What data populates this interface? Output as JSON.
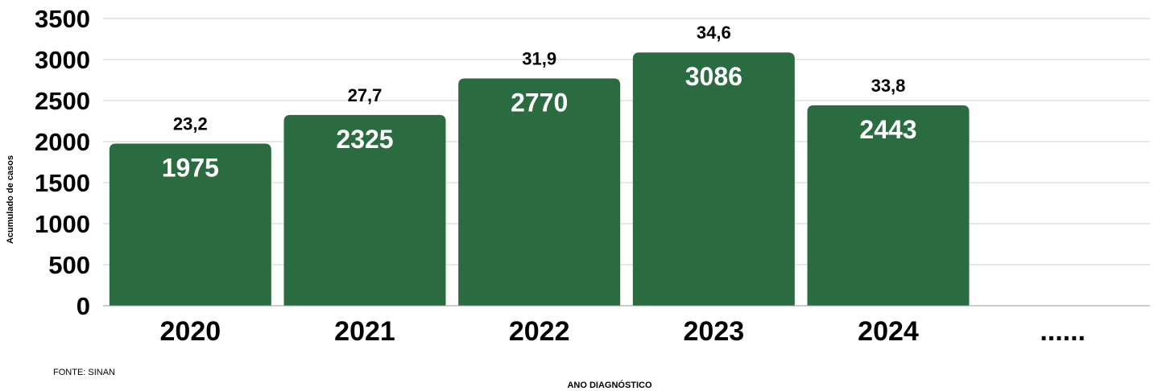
{
  "chart_data": {
    "type": "bar",
    "categories": [
      "2020",
      "2021",
      "2022",
      "2023",
      "2024",
      "......"
    ],
    "values": [
      1975,
      2325,
      2770,
      3086,
      2443,
      null
    ],
    "value_labels": [
      "1975",
      "2325",
      "2770",
      "3086",
      "2443",
      ""
    ],
    "secondary_labels": [
      "23,2",
      "27,7",
      "31,9",
      "34,6",
      "33,8",
      ""
    ],
    "ylabel": "Acumulado de casos",
    "xlabel": "ANO DIAGNÓSTICO",
    "ylim": [
      0,
      3500
    ],
    "yticks": [
      0,
      500,
      1000,
      1500,
      2000,
      2500,
      3000,
      3500
    ],
    "grid": true,
    "bar_color": "#2a6b40",
    "source": "FONTE: SINAN"
  }
}
